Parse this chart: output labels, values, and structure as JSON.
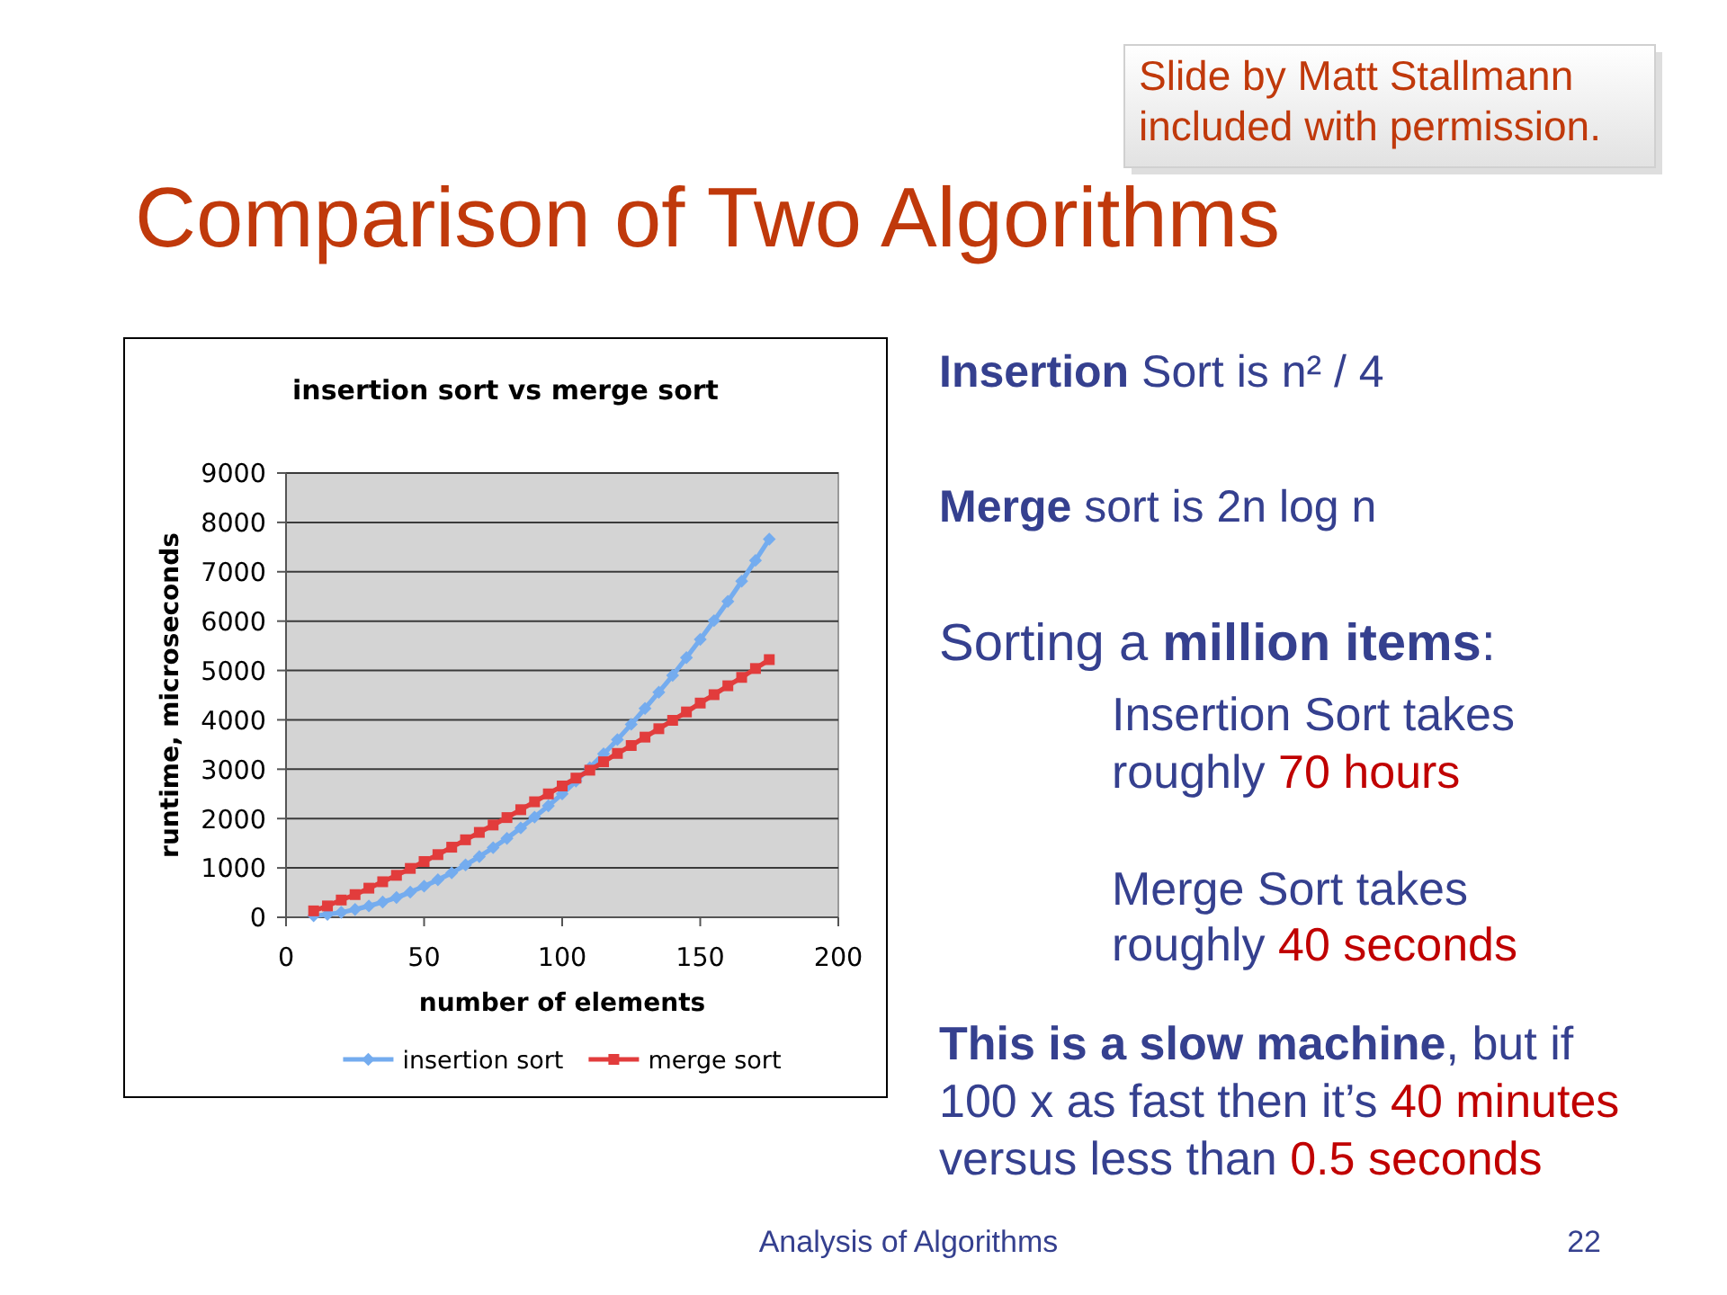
{
  "chart_data": {
    "type": "line",
    "title": "Comparison of Two Algorithms",
    "subtitle": "insertion sort vs merge sort",
    "xlabel": "number of elements",
    "ylabel": "runtime, microseconds",
    "x": [
      10,
      15,
      20,
      25,
      30,
      35,
      40,
      45,
      50,
      55,
      60,
      65,
      70,
      75,
      80,
      85,
      90,
      95,
      100,
      105,
      110,
      115,
      120,
      125,
      130,
      135,
      140,
      145,
      150,
      155,
      160,
      165,
      170,
      175
    ],
    "series": [
      {
        "name": "insertion sort",
        "color": "#74acef",
        "marker": "diamond",
        "values": [
          30,
          60,
          100,
          160,
          230,
          310,
          400,
          510,
          630,
          760,
          900,
          1060,
          1230,
          1410,
          1600,
          1810,
          2030,
          2260,
          2500,
          2760,
          3030,
          3310,
          3600,
          3910,
          4230,
          4560,
          4900,
          5260,
          5630,
          6010,
          6400,
          6810,
          7230,
          7660
        ]
      },
      {
        "name": "merge sort",
        "color": "#e23c3c",
        "marker": "square",
        "values": [
          130,
          230,
          350,
          460,
          590,
          720,
          850,
          990,
          1130,
          1270,
          1420,
          1570,
          1720,
          1870,
          2020,
          2180,
          2340,
          2500,
          2660,
          2820,
          2980,
          3150,
          3320,
          3480,
          3650,
          3820,
          3990,
          4160,
          4340,
          4510,
          4690,
          4860,
          5040,
          5220
        ]
      }
    ],
    "xlim": [
      0,
      200
    ],
    "xticks": [
      0,
      50,
      100,
      150,
      200
    ],
    "ylim": [
      0,
      9000
    ],
    "yticks": [
      0,
      1000,
      2000,
      3000,
      4000,
      5000,
      6000,
      7000,
      8000,
      9000
    ],
    "grid": "y",
    "legend": "bottom",
    "annotations": [
      "Slide by Matt Stallmann included with permission.",
      "Insertion Sort is n² / 4",
      "Merge sort is 2n log n",
      "Sorting a million items:",
      "Insertion Sort takes roughly 70 hours",
      "Merge Sort takes roughly 40 seconds",
      "This is a slow machine, but if 100 x as fast then it’s 40 minutes versus less than 0.5 seconds",
      "Analysis of Algorithms",
      "22"
    ]
  }
}
